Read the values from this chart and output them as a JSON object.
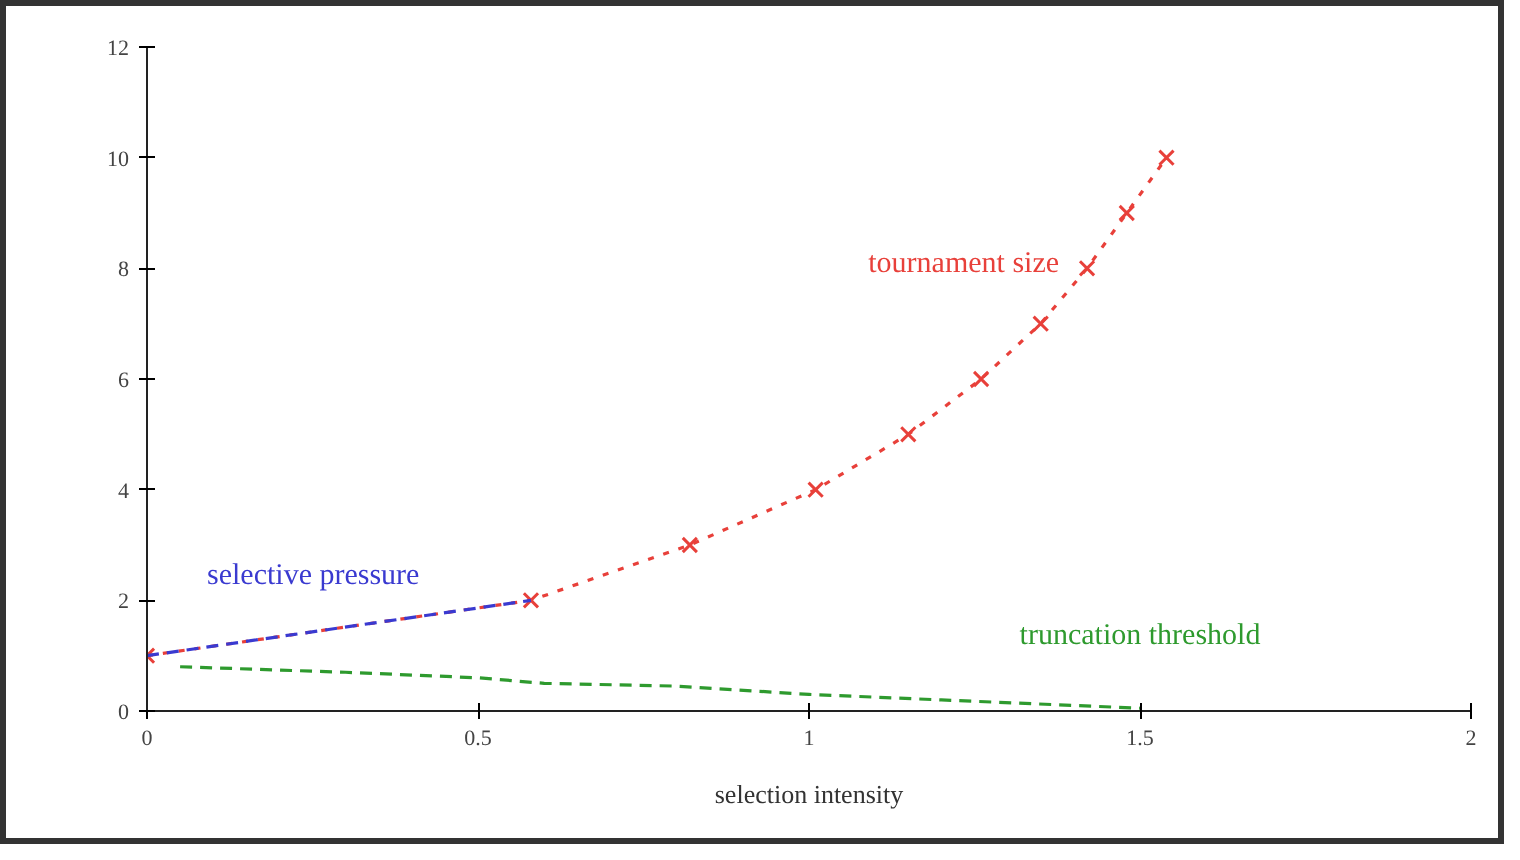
{
  "chart_data": {
    "type": "line",
    "xlabel": "selection intensity",
    "xlim": [
      0,
      2
    ],
    "xticks": [
      0,
      0.5,
      1,
      1.5,
      2
    ],
    "ylim": [
      0,
      12
    ],
    "yticks": [
      0,
      2,
      4,
      6,
      8,
      10,
      12
    ],
    "grid": false,
    "series": [
      {
        "name": "tournament size",
        "color": "#e8403a",
        "x": [
          0,
          0.58,
          0.82,
          1.01,
          1.15,
          1.26,
          1.35,
          1.42,
          1.48,
          1.54
        ],
        "values": [
          1,
          2,
          3,
          4,
          5,
          6,
          7,
          8,
          9,
          10
        ],
        "marker": "cross",
        "line_style": "dotted"
      },
      {
        "name": "selective pressure",
        "color": "#3a3ad0",
        "x": [
          0,
          0.58
        ],
        "values": [
          1,
          2
        ],
        "marker": "none",
        "line_style": "dashed"
      },
      {
        "name": "truncation threshold",
        "color": "#2e9a2e",
        "x": [
          0.05,
          0.3,
          0.5,
          0.6,
          0.8,
          1.0,
          1.2,
          1.4,
          1.5
        ],
        "values": [
          0.8,
          0.7,
          0.6,
          0.5,
          0.45,
          0.3,
          0.2,
          0.1,
          0.05
        ],
        "marker": "none",
        "line_style": "dashed"
      }
    ]
  }
}
